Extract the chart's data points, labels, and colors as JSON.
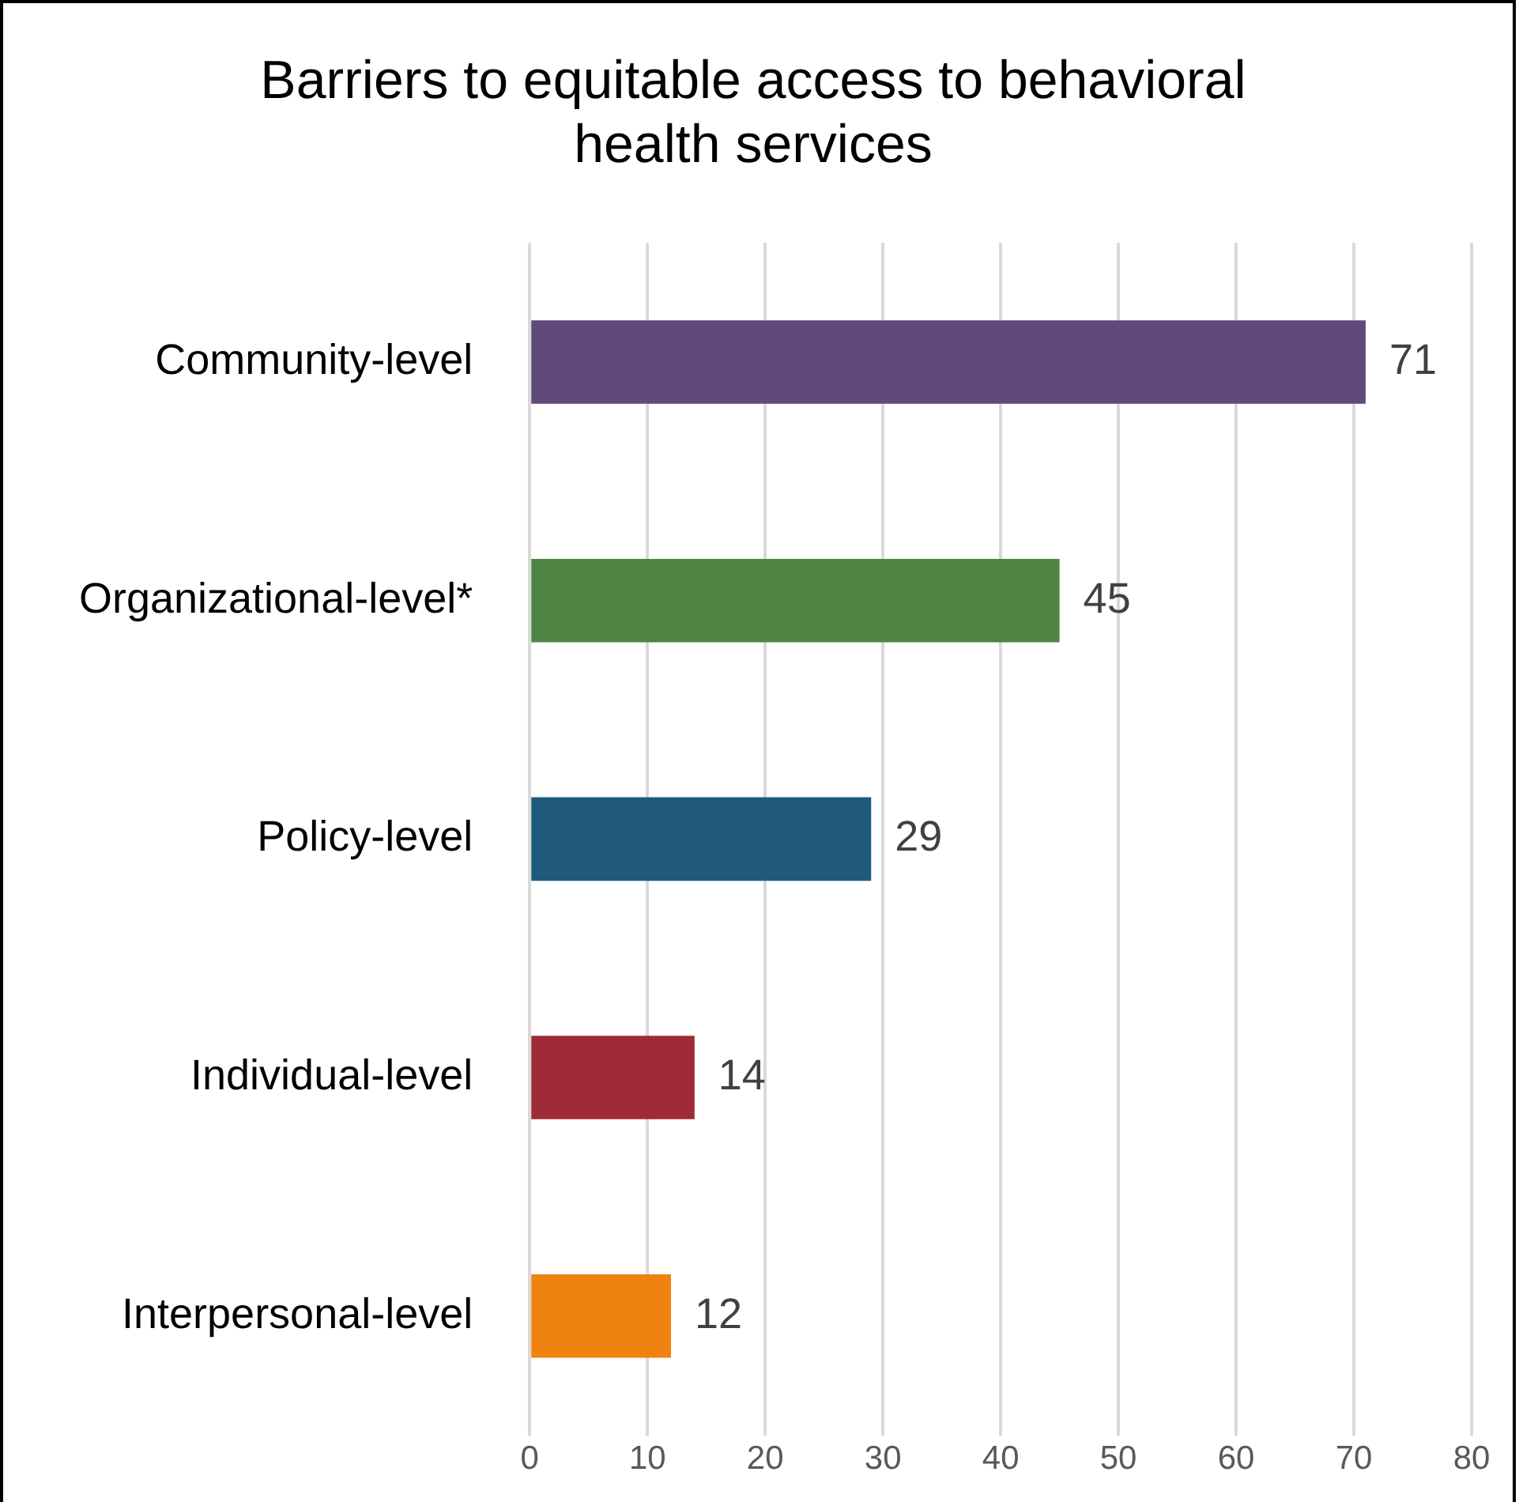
{
  "chart_data": {
    "type": "bar",
    "orientation": "horizontal",
    "title": "Barriers to equitable access to behavioral health services",
    "categories": [
      "Community-level",
      "Organizational-level*",
      "Policy-level",
      "Individual-level",
      "Interpersonal-level"
    ],
    "values": [
      71,
      45,
      29,
      14,
      12
    ],
    "colors": [
      "#604a7b",
      "#4e8542",
      "#1f5a7c",
      "#a02b38",
      "#f0820f"
    ],
    "xlim": [
      0,
      80
    ],
    "xticks": [
      0,
      10,
      20,
      30,
      40,
      50,
      60,
      70,
      80
    ],
    "grid": "x",
    "data_labels": true,
    "legend": false
  }
}
